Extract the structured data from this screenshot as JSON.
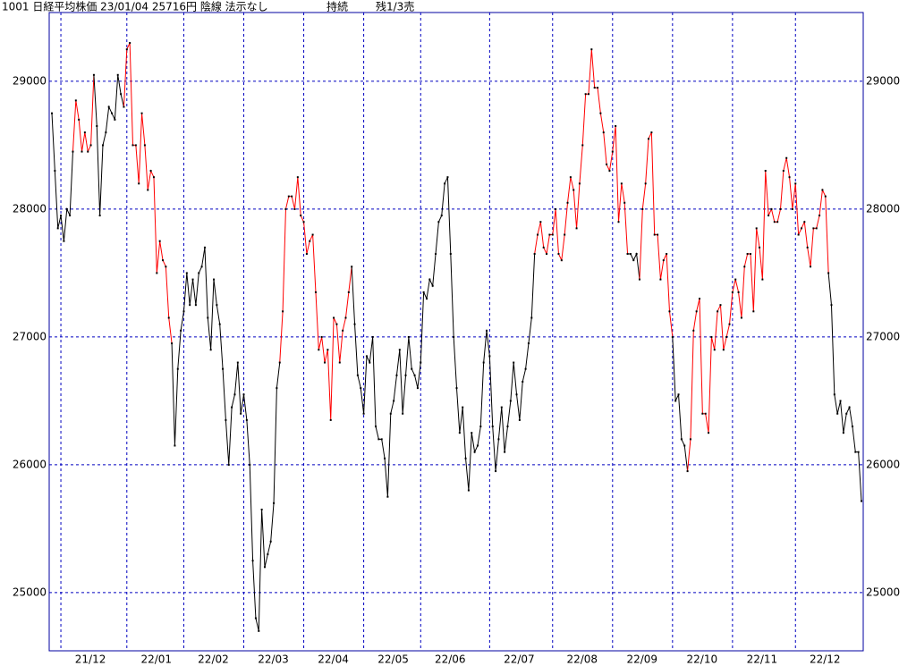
{
  "chart_data": {
    "type": "line",
    "title": "1001 日経平均株価 23/01/04 25716円 陰線 法示なし",
    "status": "持続",
    "position": "残1/3売",
    "ylim": [
      24545,
      29538
    ],
    "yticks": [
      25000,
      26000,
      27000,
      28000,
      29000
    ],
    "grid": true,
    "categories": [
      null,
      null,
      null,
      "21/12",
      null,
      null,
      null,
      null,
      null,
      null,
      null,
      null,
      null,
      null,
      null,
      null,
      null,
      null,
      null,
      null,
      null,
      null,
      null,
      null,
      null,
      "22/01",
      null,
      null,
      null,
      null,
      null,
      null,
      null,
      null,
      null,
      null,
      null,
      null,
      null,
      null,
      null,
      null,
      null,
      null,
      "22/02",
      null,
      null,
      null,
      null,
      null,
      null,
      null,
      null,
      null,
      null,
      null,
      null,
      null,
      null,
      null,
      null,
      null,
      null,
      null,
      "22/03",
      null,
      null,
      null,
      null,
      null,
      null,
      null,
      null,
      null,
      null,
      null,
      null,
      null,
      null,
      null,
      null,
      null,
      null,
      null,
      "22/04",
      null,
      null,
      null,
      null,
      null,
      null,
      null,
      null,
      null,
      null,
      null,
      null,
      null,
      null,
      null,
      null,
      null,
      null,
      null,
      "22/05",
      null,
      null,
      null,
      null,
      null,
      null,
      null,
      null,
      null,
      null,
      null,
      null,
      null,
      null,
      null,
      null,
      null,
      null,
      "22/06",
      null,
      null,
      null,
      null,
      null,
      null,
      null,
      null,
      null,
      null,
      null,
      null,
      null,
      null,
      null,
      null,
      null,
      null,
      null,
      null,
      null,
      null,
      "22/07",
      null,
      null,
      null,
      null,
      null,
      null,
      null,
      null,
      null,
      null,
      null,
      null,
      null,
      null,
      null,
      null,
      null,
      null,
      null,
      null,
      "22/08",
      null,
      null,
      null,
      null,
      null,
      null,
      null,
      null,
      null,
      null,
      null,
      null,
      null,
      null,
      null,
      null,
      null,
      null,
      null,
      "22/09",
      null,
      null,
      null,
      null,
      null,
      null,
      null,
      null,
      null,
      null,
      null,
      null,
      null,
      null,
      null,
      null,
      null,
      null,
      null,
      "22/10",
      null,
      null,
      null,
      null,
      null,
      null,
      null,
      null,
      null,
      null,
      null,
      null,
      null,
      null,
      null,
      null,
      null,
      null,
      null,
      "22/11",
      null,
      null,
      null,
      null,
      null,
      null,
      null,
      null,
      null,
      null,
      null,
      null,
      null,
      null,
      null,
      null,
      null,
      null,
      null,
      null,
      "22/12",
      null,
      null,
      null,
      null,
      null,
      null,
      null,
      null,
      null,
      null,
      null,
      null,
      null,
      null,
      null,
      null,
      null,
      null,
      null,
      null,
      null,
      null
    ],
    "values": [
      28750,
      28300,
      27850,
      27950,
      27750,
      28000,
      27950,
      28450,
      28850,
      28700,
      28450,
      28600,
      28450,
      28500,
      29050,
      28650,
      27950,
      28500,
      28600,
      28800,
      28750,
      28700,
      29050,
      28900,
      28800,
      29250,
      29300,
      28500,
      28500,
      28200,
      28750,
      28500,
      28150,
      28300,
      28250,
      27500,
      27750,
      27600,
      27550,
      27150,
      26950,
      26150,
      26750,
      27050,
      27200,
      27500,
      27250,
      27450,
      27250,
      27500,
      27550,
      27700,
      27150,
      26900,
      27450,
      27250,
      27100,
      26750,
      26350,
      26000,
      26450,
      26550,
      26800,
      26400,
      26550,
      26350,
      26000,
      25250,
      24800,
      24700,
      25650,
      25200,
      25300,
      25400,
      25700,
      26600,
      26800,
      27200,
      28000,
      28100,
      28100,
      28000,
      28250,
      27950,
      27900,
      27650,
      27750,
      27800,
      27350,
      26900,
      27000,
      26800,
      26900,
      26350,
      27150,
      27100,
      26800,
      27050,
      27150,
      27350,
      27550,
      27100,
      26700,
      26600,
      26400,
      26850,
      26800,
      27000,
      26300,
      26200,
      26200,
      26050,
      25750,
      26400,
      26500,
      26700,
      26900,
      26400,
      26700,
      27000,
      26750,
      26700,
      26600,
      26800,
      27350,
      27300,
      27450,
      27400,
      27650,
      27900,
      27950,
      28200,
      28250,
      27650,
      27000,
      26600,
      26250,
      26450,
      26050,
      25800,
      26250,
      26100,
      26150,
      26300,
      26800,
      27050,
      26850,
      26300,
      25950,
      26200,
      26450,
      26100,
      26300,
      26500,
      26800,
      26550,
      26350,
      26650,
      26750,
      26950,
      27150,
      27650,
      27800,
      27900,
      27700,
      27650,
      27800,
      27800,
      28000,
      27650,
      27600,
      27800,
      28050,
      28250,
      28150,
      27850,
      28200,
      28500,
      28900,
      28900,
      29250,
      28950,
      28950,
      28750,
      28600,
      28350,
      28300,
      28450,
      28650,
      27900,
      28200,
      28050,
      27650,
      27650,
      27600,
      27650,
      27450,
      28000,
      28200,
      28550,
      28600,
      27800,
      27800,
      27450,
      27600,
      27650,
      27200,
      27000,
      26500,
      26550,
      26200,
      26150,
      25950,
      26200,
      27050,
      27200,
      27300,
      26400,
      26400,
      26250,
      27000,
      26900,
      27200,
      27250,
      26900,
      27000,
      27100,
      27350,
      27450,
      27350,
      27150,
      27550,
      27650,
      27650,
      27200,
      27850,
      27700,
      27450,
      28300,
      27950,
      28000,
      27900,
      27900,
      28000,
      28300,
      28400,
      28250,
      28000,
      28200,
      27800,
      27850,
      27900,
      27700,
      27550,
      27850,
      27850,
      27950,
      28150,
      28100,
      27500,
      27250,
      26550,
      26400,
      26500,
      26250,
      26400,
      26450,
      26300,
      26100,
      26100,
      25716
    ],
    "segment_colors": [
      "#000",
      "#000",
      "#000",
      "#000",
      "#000",
      "#000",
      "#000",
      "#f00",
      "#f00",
      "#f00",
      "#f00",
      "#f00",
      "#f00",
      "#f00",
      "#000",
      "#000",
      "#000",
      "#000",
      "#000",
      "#000",
      "#000",
      "#000",
      "#000",
      "#000",
      "#f00",
      "#f00",
      "#f00",
      "#f00",
      "#f00",
      "#f00",
      "#f00",
      "#f00",
      "#f00",
      "#f00",
      "#f00",
      "#f00",
      "#f00",
      "#f00",
      "#f00",
      "#f00",
      "#000",
      "#000",
      "#000",
      "#000",
      "#000",
      "#000",
      "#000",
      "#000",
      "#000",
      "#000",
      "#000",
      "#000",
      "#000",
      "#000",
      "#000",
      "#000",
      "#000",
      "#000",
      "#000",
      "#000",
      "#000",
      "#000",
      "#000",
      "#000",
      "#000",
      "#000",
      "#000",
      "#000",
      "#000",
      "#000",
      "#000",
      "#000",
      "#000",
      "#000",
      "#000",
      "#000",
      "#f00",
      "#f00",
      "#f00",
      "#f00",
      "#f00",
      "#f00",
      "#f00",
      "#f00",
      "#f00",
      "#f00",
      "#f00",
      "#f00",
      "#f00",
      "#f00",
      "#f00",
      "#f00",
      "#f00",
      "#f00",
      "#f00",
      "#f00",
      "#f00",
      "#f00",
      "#f00",
      "#f00",
      "#000",
      "#000",
      "#000",
      "#000",
      "#000",
      "#000",
      "#000",
      "#000",
      "#000",
      "#000",
      "#000",
      "#000",
      "#000",
      "#000",
      "#000",
      "#000",
      "#000",
      "#000",
      "#000",
      "#000",
      "#000",
      "#000",
      "#000",
      "#000",
      "#000",
      "#000",
      "#000",
      "#000",
      "#000",
      "#000",
      "#000",
      "#000",
      "#000",
      "#000",
      "#000",
      "#000",
      "#000",
      "#000",
      "#000",
      "#000",
      "#000",
      "#000",
      "#000",
      "#000",
      "#000",
      "#000",
      "#000",
      "#000",
      "#000",
      "#000",
      "#000",
      "#000",
      "#000",
      "#000",
      "#000",
      "#000",
      "#000",
      "#000",
      "#000",
      "#000",
      "#000",
      "#f00",
      "#f00",
      "#f00",
      "#f00",
      "#f00",
      "#f00",
      "#f00",
      "#f00",
      "#f00",
      "#f00",
      "#f00",
      "#f00",
      "#f00",
      "#f00",
      "#f00",
      "#f00",
      "#f00",
      "#f00",
      "#f00",
      "#f00",
      "#f00",
      "#f00",
      "#f00",
      "#f00",
      "#f00",
      "#f00",
      "#f00",
      "#f00",
      "#f00",
      "#f00",
      "#f00",
      "#000",
      "#000",
      "#000",
      "#000",
      "#f00",
      "#f00",
      "#f00",
      "#f00",
      "#f00",
      "#f00",
      "#f00",
      "#f00",
      "#f00",
      "#f00",
      "#f00",
      "#000",
      "#000",
      "#000",
      "#000",
      "#000",
      "#f00",
      "#f00",
      "#f00",
      "#f00",
      "#f00",
      "#f00",
      "#f00",
      "#f00",
      "#f00",
      "#f00",
      "#f00",
      "#f00",
      "#f00",
      "#f00",
      "#f00",
      "#f00",
      "#f00",
      "#f00",
      "#f00",
      "#f00",
      "#f00",
      "#f00",
      "#f00",
      "#f00",
      "#f00",
      "#f00",
      "#f00",
      "#f00",
      "#f00",
      "#f00",
      "#f00",
      "#f00",
      "#f00",
      "#f00",
      "#f00",
      "#f00",
      "#f00",
      "#f00",
      "#f00",
      "#f00",
      "#f00",
      "#f00",
      "#f00",
      "#f00",
      "#f00",
      "#f00",
      "#f00",
      "#000",
      "#000",
      "#000",
      "#000",
      "#000",
      "#000",
      "#000",
      "#000",
      "#000",
      "#000",
      "#000",
      "#000"
    ]
  }
}
